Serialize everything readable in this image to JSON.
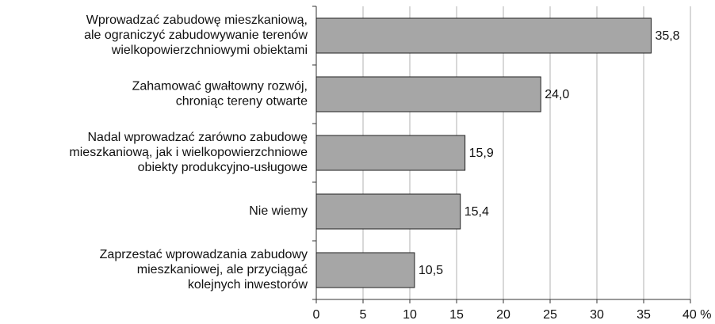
{
  "chart_data": {
    "type": "bar",
    "orientation": "horizontal",
    "categories": [
      [
        "Wprowadzać zabudowę mieszkaniową,",
        "ale ograniczyć zabudowywanie terenów",
        "wielkopowierzchniowymi obiektami"
      ],
      [
        "Zahamować gwałtowny rozwój,",
        "chroniąc tereny otwarte"
      ],
      [
        "Nadal wprowadzać zarówno zabudowę",
        "mieszkaniową, jak i wielkopowierzchniowe",
        "obiekty produkcyjno-usługowe"
      ],
      [
        "Nie wiemy"
      ],
      [
        "Zaprzestać wprowadzania zabudowy",
        "mieszkaniowej, ale przyciągać",
        "kolejnych inwestorów"
      ]
    ],
    "values": [
      35.8,
      24.0,
      15.9,
      15.4,
      10.5
    ],
    "value_labels": [
      "35,8",
      "24,0",
      "15,9",
      "15,4",
      "10,5"
    ],
    "color": "#a6a6a6",
    "xlim": [
      0,
      40
    ],
    "xticks": [
      0,
      5,
      10,
      15,
      20,
      25,
      30,
      35,
      {
        "value": 40,
        "label": "40 %"
      }
    ],
    "grid": true
  }
}
